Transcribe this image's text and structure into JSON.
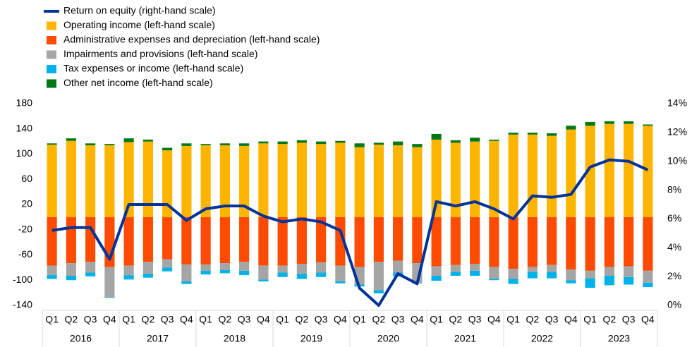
{
  "chart_data": {
    "type": "bar",
    "stacked": true,
    "categories": [
      "Q1",
      "Q2",
      "Q3",
      "Q4",
      "Q1",
      "Q2",
      "Q3",
      "Q4",
      "Q1",
      "Q2",
      "Q3",
      "Q4",
      "Q1",
      "Q2",
      "Q3",
      "Q4",
      "Q1",
      "Q2",
      "Q3",
      "Q4",
      "Q1",
      "Q2",
      "Q3",
      "Q4",
      "Q1",
      "Q2",
      "Q3",
      "Q4",
      "Q1",
      "Q2",
      "Q3",
      "Q4"
    ],
    "groups": [
      "2016",
      "2017",
      "2018",
      "2019",
      "2020",
      "2021",
      "2022",
      "2023"
    ],
    "series": [
      {
        "name": "Return on equity (right-hand scale)",
        "type": "line",
        "axis": "y2",
        "color": "#003299",
        "values": [
          5.2,
          5.4,
          5.4,
          3.2,
          7.0,
          7.0,
          7.0,
          5.9,
          6.7,
          6.9,
          6.9,
          6.2,
          5.8,
          6.0,
          5.8,
          5.2,
          1.2,
          0.0,
          2.2,
          1.5,
          7.2,
          6.9,
          7.2,
          6.7,
          6.0,
          7.6,
          7.5,
          7.7,
          9.6,
          10.1,
          10.0,
          9.4
        ]
      },
      {
        "name": "Operating income (left-hand scale)",
        "color": "#ffb400",
        "values": [
          115,
          121,
          114,
          114,
          119,
          120,
          106,
          113,
          114,
          114,
          113,
          117,
          116,
          118,
          116,
          118,
          111,
          115,
          114,
          111,
          123,
          118,
          120,
          121,
          131,
          131,
          129,
          139,
          145,
          148,
          148,
          145
        ]
      },
      {
        "name": "Administrative expenses and depreciation (left-hand scale)",
        "color": "#ff4b00",
        "values": [
          -77,
          -73,
          -71,
          -79,
          -77,
          -71,
          -67,
          -75,
          -75,
          -73,
          -71,
          -77,
          -77,
          -74,
          -72,
          -77,
          -79,
          -71,
          -69,
          -73,
          -78,
          -76,
          -74,
          -79,
          -82,
          -79,
          -76,
          -83,
          -85,
          -79,
          -78,
          -85
        ]
      },
      {
        "name": "Impairments and provisions (left-hand scale)",
        "color": "#a5a5a5",
        "values": [
          -15,
          -20,
          -17,
          -48,
          -15,
          -19,
          -13,
          -27,
          -10,
          -11,
          -14,
          -22,
          -11,
          -16,
          -16,
          -25,
          -28,
          -45,
          -19,
          -31,
          -15,
          -11,
          -11,
          -19,
          -16,
          -8,
          -11,
          -17,
          -12,
          -14,
          -17,
          -19
        ]
      },
      {
        "name": "Tax expenses or income (left-hand scale)",
        "color": "#00b1ea",
        "values": [
          -6,
          -7,
          -6,
          -1,
          -7,
          -6,
          -6,
          -4,
          -6,
          -5,
          -7,
          -3,
          -7,
          -8,
          -7,
          -3,
          -3,
          -5,
          -6,
          -1,
          -8,
          -6,
          -8,
          -2,
          -8,
          -10,
          -10,
          -5,
          -15,
          -15,
          -12,
          -7
        ]
      },
      {
        "name": "Other net income (left-hand scale)",
        "color": "#007816",
        "values": [
          2,
          4,
          3,
          2,
          6,
          3,
          4,
          4,
          2,
          3,
          4,
          3,
          4,
          4,
          4,
          3,
          6,
          3,
          6,
          5,
          9,
          4,
          6,
          2,
          3,
          3,
          4,
          6,
          6,
          4,
          4,
          2
        ]
      }
    ],
    "ylim": [
      -140,
      180
    ],
    "yticks": [
      -140,
      -100,
      -60,
      -20,
      20,
      60,
      100,
      140,
      180
    ],
    "y2lim": [
      0,
      14
    ],
    "y2ticks": [
      {
        "value": 0,
        "label": "0%"
      },
      {
        "value": 2,
        "label": "2%"
      },
      {
        "value": 4,
        "label": "4%"
      },
      {
        "value": 6,
        "label": "6%"
      },
      {
        "value": 8,
        "label": "8%"
      },
      {
        "value": 10,
        "label": "10%"
      },
      {
        "value": 12,
        "label": "12%"
      },
      {
        "value": 14,
        "label": "14%"
      }
    ],
    "legend": "top-left"
  }
}
